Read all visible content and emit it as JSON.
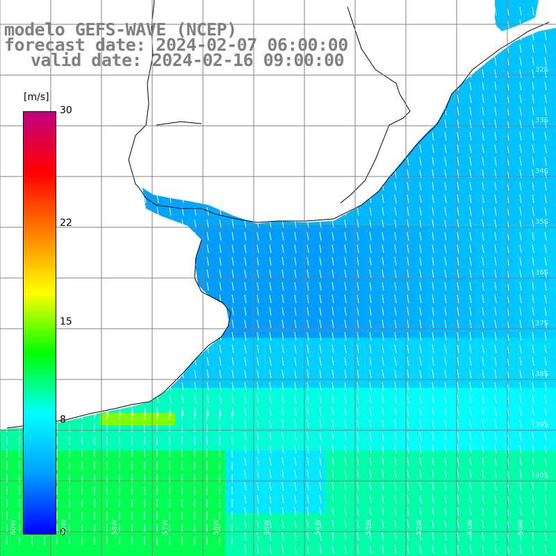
{
  "title": {
    "line1": "modelo GEFS-WAVE (NCEP)",
    "line2": "forecast date: 2024-02-07 06:00:00",
    "line3": "valid date: 2024-02-16 09:00:00"
  },
  "colorbar": {
    "unit": "[m/s]",
    "ticks": [
      {
        "label": "30",
        "value": 30
      },
      {
        "label": "22",
        "value": 22
      },
      {
        "label": "15",
        "value": 15
      },
      {
        "label": "8",
        "value": 8
      },
      {
        "label": "0",
        "value": 0
      }
    ],
    "range": [
      0,
      30
    ],
    "colors": [
      "#0000ff",
      "#00a0ff",
      "#00ffff",
      "#00ff00",
      "#ffff00",
      "#ff8000",
      "#ff0000",
      "#c00080"
    ]
  },
  "lat_labels": [
    "32S",
    "33S",
    "34S",
    "35S",
    "36S",
    "37S",
    "38S",
    "39S",
    "40S"
  ],
  "lon_labels": [
    "60W",
    "59W",
    "58W",
    "57W",
    "56W",
    "55W",
    "54W",
    "53W",
    "52W",
    "51W",
    "50W"
  ],
  "land_color": "#ffffff",
  "grid_color": "#808080",
  "arrow_color": "#ffffff"
}
